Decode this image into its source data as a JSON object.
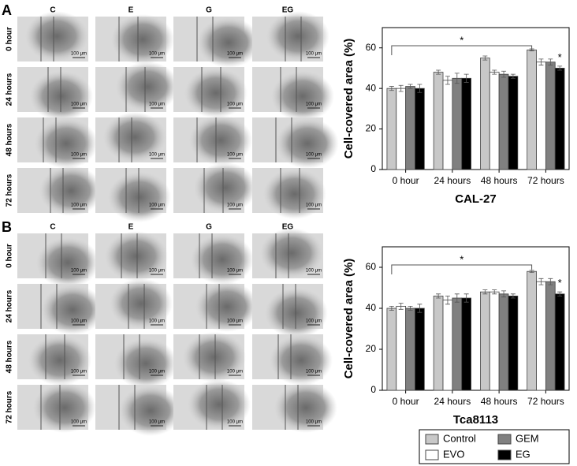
{
  "panels": [
    {
      "letter": "A",
      "columns": [
        "C",
        "E",
        "G",
        "EG"
      ],
      "rows": [
        "0 hour",
        "24 hours",
        "48 hours",
        "72 hours"
      ],
      "scale_bar": "100 μm"
    },
    {
      "letter": "B",
      "columns": [
        "C",
        "E",
        "G",
        "EG"
      ],
      "rows": [
        "0 hour",
        "24 hours",
        "48 hours",
        "72 hours"
      ],
      "scale_bar": "100 μm"
    }
  ],
  "chart_data": [
    {
      "type": "bar",
      "title": "CAL-27",
      "y_label": "Cell-covered area (%)",
      "categories": [
        "0 hour",
        "24 hours",
        "48 hours",
        "72 hours"
      ],
      "series": [
        {
          "name": "Control",
          "color": "#c8c8c8",
          "values": [
            40,
            48,
            55,
            59
          ],
          "errors": [
            1,
            1,
            1,
            0.5
          ]
        },
        {
          "name": "EVO",
          "color": "#ffffff",
          "values": [
            40,
            44,
            48,
            53
          ],
          "errors": [
            1.5,
            2,
            1,
            1.5
          ]
        },
        {
          "name": "GEM",
          "color": "#808080",
          "values": [
            41,
            45,
            47,
            53
          ],
          "errors": [
            1,
            2.5,
            1.5,
            1.5
          ]
        },
        {
          "name": "EG",
          "color": "#000000",
          "values": [
            40,
            45,
            46,
            50
          ],
          "errors": [
            2,
            2,
            1,
            1
          ]
        }
      ],
      "ylim": [
        0,
        70
      ],
      "yticks": [
        0,
        20,
        40,
        60
      ],
      "annotations": [
        "*",
        "*"
      ]
    },
    {
      "type": "bar",
      "title": "Tca8113",
      "y_label": "Cell-covered area (%)",
      "categories": [
        "0 hour",
        "24 hours",
        "48 hours",
        "72 hours"
      ],
      "series": [
        {
          "name": "Control",
          "color": "#c8c8c8",
          "values": [
            40,
            46,
            48,
            58
          ],
          "errors": [
            1,
            1,
            1,
            0.5
          ]
        },
        {
          "name": "EVO",
          "color": "#ffffff",
          "values": [
            41,
            44,
            48,
            53
          ],
          "errors": [
            1.5,
            2,
            1,
            1.5
          ]
        },
        {
          "name": "GEM",
          "color": "#808080",
          "values": [
            40,
            45,
            47,
            53
          ],
          "errors": [
            1,
            2,
            1.5,
            1.5
          ]
        },
        {
          "name": "EG",
          "color": "#000000",
          "values": [
            40,
            45,
            46,
            47
          ],
          "errors": [
            2,
            2,
            1,
            1
          ]
        }
      ],
      "ylim": [
        0,
        70
      ],
      "yticks": [
        0,
        20,
        40,
        60
      ],
      "annotations": [
        "*",
        "*"
      ]
    }
  ]
}
